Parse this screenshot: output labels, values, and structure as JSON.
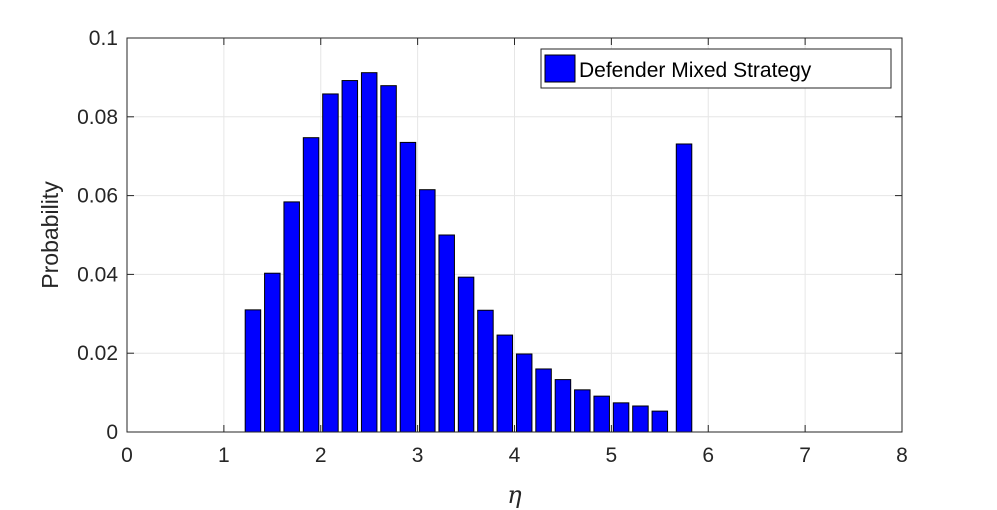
{
  "chart_data": {
    "type": "bar",
    "title": "",
    "xlabel": "η",
    "ylabel": "Probability",
    "xlim": [
      0,
      8
    ],
    "ylim": [
      0,
      0.1
    ],
    "xticks": [
      "0",
      "1",
      "2",
      "3",
      "4",
      "5",
      "6",
      "7",
      "8"
    ],
    "yticks": [
      "0",
      "0.02",
      "0.04",
      "0.06",
      "0.08",
      "0.1"
    ],
    "grid": true,
    "legend_position": "top-right",
    "bar_color": "#0000ff",
    "series": [
      {
        "name": "Defender Mixed Strategy",
        "x": [
          1.3,
          1.5,
          1.7,
          1.9,
          2.1,
          2.3,
          2.5,
          2.7,
          2.9,
          3.1,
          3.3,
          3.5,
          3.7,
          3.9,
          4.1,
          4.3,
          4.5,
          4.7,
          4.9,
          5.1,
          5.3,
          5.5,
          5.75
        ],
        "values": [
          0.031,
          0.0403,
          0.0584,
          0.0747,
          0.0858,
          0.0892,
          0.0912,
          0.0879,
          0.0735,
          0.0615,
          0.05,
          0.0393,
          0.0309,
          0.0246,
          0.0198,
          0.016,
          0.0133,
          0.0107,
          0.0091,
          0.0074,
          0.0066,
          0.0053,
          0.0731
        ]
      }
    ]
  }
}
